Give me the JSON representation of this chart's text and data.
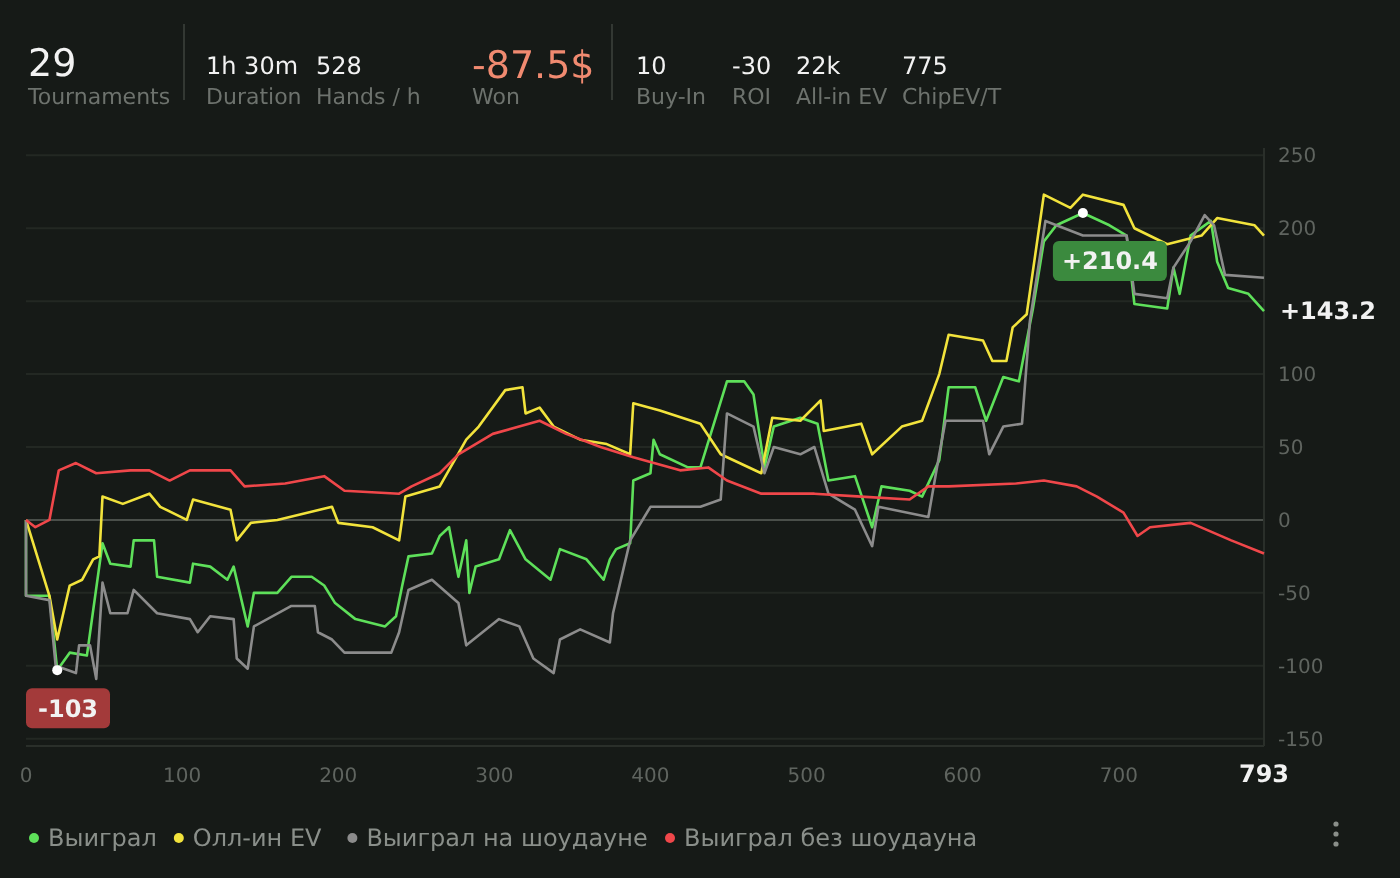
{
  "chart_data": [
    {
      "type": "other",
      "annotations": [
        "29",
        "Tournaments",
        "1h 30m",
        "Duration",
        "528",
        "Hands / h",
        "-87.5$",
        "Won",
        "10",
        "Buy-In",
        "-30",
        "ROI",
        "22k",
        "All-in EV",
        "775",
        "ChipEV/T"
      ]
    },
    {
      "type": "line",
      "xlim": [
        0,
        793
      ],
      "xticks": [
        0,
        100,
        200,
        300,
        400,
        500,
        600,
        700,
        793
      ],
      "ylim": [
        -155,
        255
      ],
      "yticks": [
        -150,
        -100,
        -50,
        0,
        50,
        100,
        {
          "value": 150,
          "label": null
        },
        200,
        250
      ],
      "grid": "y",
      "legend": "bottom",
      "marker": "none",
      "line_style": "solid",
      "annotations": [
        {
          "text": "+210.4",
          "x": 677,
          "y": 210.4
        },
        {
          "text": "-103",
          "x": 20,
          "y": -103
        },
        {
          "text": "+143.2",
          "x": 793,
          "y": 143.2
        }
      ],
      "series": [
        {
          "name": "Выиграл",
          "color": "#5ee05a",
          "x": [
            0,
            0,
            15,
            20,
            28,
            39,
            49,
            54,
            67,
            69,
            82,
            84,
            105,
            107,
            118,
            129,
            133,
            142,
            146,
            161,
            170,
            183,
            191,
            198,
            211,
            230,
            237,
            241,
            245,
            260,
            265,
            271,
            277,
            282,
            284,
            288,
            303,
            310,
            320,
            336,
            342,
            359,
            370,
            374,
            378,
            387,
            389,
            400,
            402,
            406,
            424,
            432,
            449,
            460,
            466,
            473,
            479,
            496,
            507,
            514,
            531,
            542,
            548,
            566,
            574,
            585,
            591,
            608,
            615,
            626,
            636,
            645,
            652,
            660,
            677,
            694,
            705,
            710,
            731,
            735,
            739,
            746,
            759,
            763,
            770,
            783,
            793
          ],
          "values": [
            0,
            -52,
            -52,
            -103,
            -91,
            -93,
            -16,
            -30,
            -32,
            -14,
            -14,
            -39,
            -43,
            -30,
            -32,
            -41,
            -32,
            -73,
            -50,
            -50,
            -39,
            -39,
            -45,
            -57,
            -68,
            -73,
            -66,
            -45,
            -25,
            -23,
            -11,
            -5,
            -39,
            -14,
            -50,
            -32,
            -27,
            -7,
            -27,
            -41,
            -20,
            -27,
            -41,
            -27,
            -20,
            -16,
            27,
            32,
            55,
            45,
            36,
            36,
            95,
            95,
            86,
            36,
            64,
            70,
            66,
            27,
            30,
            -5,
            23,
            20,
            16,
            41,
            91,
            91,
            68,
            98,
            95,
            145,
            191,
            202,
            210.4,
            202,
            195,
            148,
            145,
            173,
            155,
            195,
            205,
            177,
            159,
            155,
            143.2
          ]
        },
        {
          "name": "Олл-ин EV",
          "color": "#f2e33c",
          "x": [
            0,
            15,
            20,
            28,
            36,
            43,
            47,
            49,
            62,
            79,
            86,
            103,
            107,
            131,
            135,
            144,
            161,
            196,
            200,
            222,
            239,
            243,
            265,
            282,
            290,
            307,
            318,
            320,
            329,
            338,
            355,
            372,
            387,
            389,
            406,
            432,
            445,
            471,
            478,
            496,
            509,
            511,
            535,
            542,
            561,
            574,
            585,
            591,
            613,
            619,
            628,
            632,
            641,
            652,
            669,
            677,
            703,
            710,
            731,
            753,
            763,
            787,
            793
          ],
          "values": [
            0,
            -52,
            -82,
            -45,
            -41,
            -27,
            -25,
            16,
            11,
            18,
            9,
            0,
            14,
            7,
            -14,
            -2,
            0,
            9,
            -2,
            -5,
            -14,
            16,
            23,
            55,
            64,
            89,
            91,
            73,
            77,
            64,
            55,
            52,
            45,
            80,
            75,
            66,
            45,
            32,
            70,
            68,
            82,
            61,
            66,
            45,
            64,
            68,
            100,
            127,
            123,
            109,
            109,
            132,
            141,
            223,
            214,
            223,
            216,
            200,
            189,
            195,
            207,
            202,
            195
          ]
        },
        {
          "name": "Выиграл на шоудауне",
          "color": "#8c8c8c",
          "x": [
            0,
            0,
            15,
            19,
            32,
            34,
            41,
            45,
            49,
            54,
            65,
            69,
            84,
            105,
            110,
            118,
            133,
            135,
            142,
            146,
            170,
            185,
            187,
            196,
            204,
            234,
            239,
            245,
            260,
            277,
            282,
            303,
            316,
            325,
            338,
            342,
            355,
            374,
            376,
            387,
            400,
            432,
            445,
            449,
            466,
            473,
            479,
            496,
            505,
            514,
            531,
            542,
            546,
            578,
            585,
            589,
            613,
            617,
            626,
            638,
            643,
            653,
            677,
            705,
            710,
            731,
            735,
            746,
            755,
            761,
            768,
            793
          ],
          "values": [
            0,
            -52,
            -55,
            -100,
            -105,
            -86,
            -86,
            -109,
            -43,
            -64,
            -64,
            -48,
            -64,
            -68,
            -77,
            -66,
            -68,
            -95,
            -102,
            -73,
            -59,
            -59,
            -77,
            -82,
            -91,
            -91,
            -77,
            -48,
            -41,
            -57,
            -86,
            -68,
            -73,
            -95,
            -105,
            -82,
            -75,
            -84,
            -64,
            -14,
            9,
            9,
            14,
            73,
            64,
            32,
            50,
            45,
            50,
            18,
            7,
            -18,
            9,
            2,
            45,
            68,
            68,
            45,
            64,
            66,
            136,
            205,
            195,
            195,
            155,
            152,
            173,
            191,
            209,
            202,
            168,
            166
          ]
        },
        {
          "name": "Выиграл без шоудауна",
          "color": "#f0474a",
          "x": [
            0,
            6,
            15,
            21,
            32,
            45,
            67,
            79,
            92,
            105,
            131,
            140,
            166,
            191,
            204,
            239,
            247,
            265,
            277,
            299,
            329,
            346,
            368,
            389,
            419,
            437,
            449,
            471,
            505,
            535,
            566,
            578,
            591,
            634,
            652,
            673,
            686,
            703,
            712,
            720,
            746,
            772,
            793
          ],
          "values": [
            0,
            -5,
            0,
            34,
            39,
            32,
            34,
            34,
            27,
            34,
            34,
            23,
            25,
            30,
            20,
            18,
            23,
            32,
            45,
            59,
            68,
            59,
            50,
            43,
            34,
            36,
            27,
            18,
            18,
            16,
            14,
            23,
            23,
            25,
            27,
            23,
            16,
            5,
            -11,
            -5,
            -2,
            -14,
            -23
          ]
        }
      ]
    }
  ]
}
